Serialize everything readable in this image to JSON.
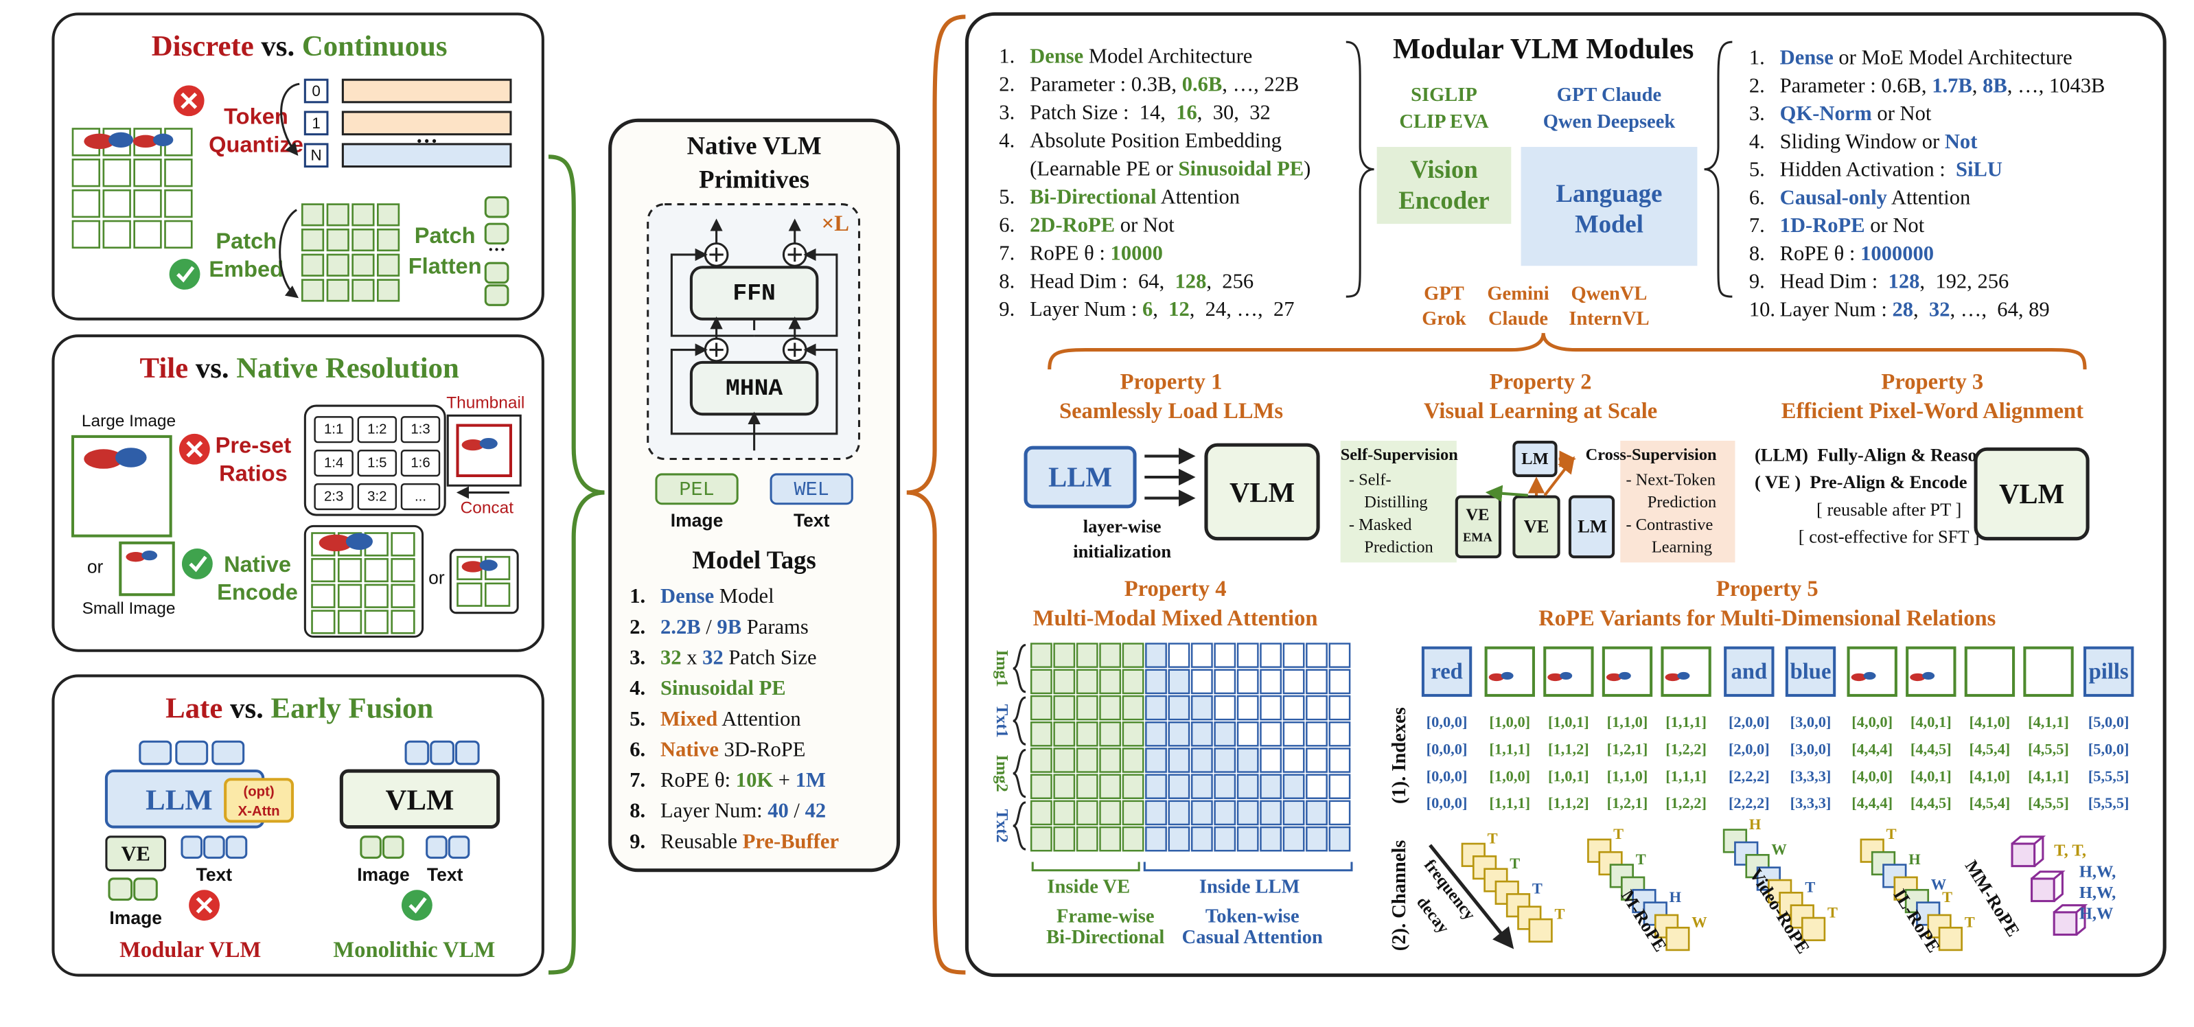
{
  "panels": {
    "discrete": {
      "title": [
        "Discrete",
        " vs. ",
        "Continuous"
      ],
      "token_quantize": [
        "Token",
        "Quantize"
      ],
      "indices": [
        "0",
        "1",
        "N"
      ],
      "ellipsis": "···",
      "patch_embed": [
        "Patch",
        "Embed"
      ],
      "patch_flatten": [
        "Patch",
        "Flatten"
      ],
      "ellipsis2": "···"
    },
    "tile": {
      "title": [
        "Tile",
        " vs. ",
        "Native Resolution"
      ],
      "large_image": "Large Image",
      "preset": [
        "Pre-set",
        "Ratios"
      ],
      "ratios": [
        "1:1",
        "1:2",
        "1:3",
        "1:4",
        "1:5",
        "1:6",
        "2:3",
        "3:2",
        "..."
      ],
      "thumbnail": "Thumbnail",
      "concat": "Concat",
      "or": "or",
      "small_image": "Small Image",
      "native_encode": [
        "Native",
        "Encode"
      ],
      "or2": "or"
    },
    "fusion": {
      "title": [
        "Late",
        " vs. ",
        "Early Fusion"
      ],
      "llm": "LLM",
      "x_attn": [
        "(opt)",
        "X-Attn"
      ],
      "ve": "VE",
      "text": "Text",
      "image": "Image",
      "modular": "Modular VLM",
      "vlm": "VLM",
      "image2": "Image",
      "text2": "Text",
      "monolithic": "Monolithic VLM"
    }
  },
  "primitives": {
    "title": [
      "Native VLM",
      "Primitives"
    ],
    "repeat": "×L",
    "ffn": "FFN",
    "mhna": "MHNA",
    "pel": "PEL",
    "wel": "WEL",
    "image": "Image",
    "text": "Text",
    "tags_title": "Model Tags",
    "tags": [
      [
        "1.",
        "Dense",
        " Model"
      ],
      [
        "2.",
        "2.2B",
        " / ",
        "9B",
        " Params"
      ],
      [
        "3.",
        "32",
        " x ",
        "32",
        " Patch Size"
      ],
      [
        "4.",
        "Sinusoidal PE"
      ],
      [
        "5.",
        "Mixed",
        " Attention"
      ],
      [
        "6.",
        "Native",
        " 3D-RoPE"
      ],
      [
        "7.",
        "RoPE θ: ",
        "10K",
        " + ",
        "1M"
      ],
      [
        "8.",
        "Layer Num: ",
        "40",
        " / ",
        "42"
      ],
      [
        "9.",
        "Reusable ",
        "Pre-Buffer"
      ]
    ]
  },
  "modules": {
    "title": "Modular VLM Modules",
    "vision_models": [
      "SIGLIP",
      "CLIP EVA"
    ],
    "vision_encoder": [
      "Vision",
      "Encoder"
    ],
    "language_models": [
      "GPT Claude",
      "Qwen Deepseek"
    ],
    "language_model": [
      "Language",
      "Model"
    ],
    "vlm_models": [
      [
        "GPT",
        "Grok"
      ],
      [
        "Gemini",
        "Claude"
      ],
      [
        "QwenVL",
        "InternVL"
      ]
    ],
    "vision_specs": [
      [
        "1.",
        "Dense",
        " Model Architecture"
      ],
      [
        "2.",
        "Parameter : 0.3B, ",
        "0.6B",
        ", …, 22B"
      ],
      [
        "3.",
        "Patch Size :  14,  ",
        "16",
        ",  30,  32"
      ],
      [
        "4.",
        "Absolute Position Embedding"
      ],
      [
        "(Learnable PE or ",
        "Sinusoidal PE",
        ")"
      ],
      [
        "5.",
        "Bi-Directional",
        " Attention"
      ],
      [
        "6.",
        "2D-RoPE",
        " or Not"
      ],
      [
        "7.",
        "RoPE θ : ",
        "10000"
      ],
      [
        "8.",
        "Head Dim :  64,  ",
        "128",
        ",  256"
      ],
      [
        "9.",
        "Layer Num : ",
        "6",
        ",  ",
        "12",
        ",  24, …,  27"
      ]
    ],
    "language_specs": [
      [
        "1.",
        "Dense",
        " or MoE Model Architecture"
      ],
      [
        "2.",
        "Parameter : 0.6B, ",
        "1.7B",
        ", ",
        "8B",
        ", …, 1043B"
      ],
      [
        "3.",
        "QK-Norm",
        " or Not"
      ],
      [
        "4.",
        "Sliding Window or ",
        "Not"
      ],
      [
        "5.",
        "Hidden Activation :  ",
        "SiLU"
      ],
      [
        "6.",
        "Causal-only",
        " Attention"
      ],
      [
        "7.",
        "1D-RoPE",
        " or Not"
      ],
      [
        "8.",
        "RoPE θ : ",
        "1000000"
      ],
      [
        "9.",
        "Head Dim :  ",
        "128",
        ",  192, 256"
      ],
      [
        "10.",
        "Layer Num : ",
        "28",
        ",  ",
        "32",
        ", …,  64, 89"
      ]
    ]
  },
  "properties": [
    {
      "title": [
        "Property 1",
        "Seamlessly Load LLMs"
      ],
      "llm": "LLM",
      "vlm": "VLM",
      "caption": [
        "layer-wise",
        "initialization"
      ]
    },
    {
      "title": [
        "Property 2",
        "Visual Learning at Scale"
      ],
      "self_title": "Self-Supervision",
      "self_items": [
        "- Self-",
        "Distilling",
        "- Masked",
        "Prediction"
      ],
      "cross_title": "Cross-Supervision",
      "cross_items": [
        "- Next-Token",
        "Prediction",
        "- Contrastive",
        "Learning"
      ],
      "lm_top": "LM",
      "ve_ema": [
        "VE",
        "EMA"
      ],
      "ve": "VE",
      "lm": "LM"
    },
    {
      "title": [
        "Property 3",
        "Efficient Pixel-Word Alignment"
      ],
      "lines": [
        "(LLM)  Fully-Align & Reason",
        "( VE )  Pre-Align & Encode",
        "[ reusable after PT ]",
        "[ cost-effective for SFT ]"
      ],
      "vlm": "VLM"
    },
    {
      "title": [
        "Property 4",
        "Multi-Modal Mixed Attention"
      ],
      "groups": [
        "Img1",
        "Txt1",
        "Img2",
        "Txt2"
      ],
      "inside_ve": "Inside VE",
      "inside_llm": "Inside LLM",
      "ve_caption": [
        "Frame-wise",
        "Bi-Directional"
      ],
      "llm_caption": [
        "Token-wise",
        "Casual Attention"
      ]
    },
    {
      "title": [
        "Property 5",
        "RoPE Variants for Multi-Dimensional Relations"
      ],
      "tokens": [
        "red",
        null,
        null,
        null,
        null,
        "and",
        "blue",
        null,
        null,
        null,
        null,
        "pills"
      ],
      "indexes_label": "(1). Indexes",
      "indexes": [
        [
          "[0,0,0]",
          "[1,0,0]",
          "[1,0,1]",
          "[1,1,0]",
          "[1,1,1]",
          "[2,0,0]",
          "[3,0,0]",
          "[4,0,0]",
          "[4,0,1]",
          "[4,1,0]",
          "[4,1,1]",
          "[5,0,0]"
        ],
        [
          "[0,0,0]",
          "[1,1,1]",
          "[1,1,2]",
          "[1,2,1]",
          "[1,2,2]",
          "[2,0,0]",
          "[3,0,0]",
          "[4,4,4]",
          "[4,4,5]",
          "[4,5,4]",
          "[4,5,5]",
          "[5,0,0]"
        ],
        [
          "[0,0,0]",
          "[1,0,0]",
          "[1,0,1]",
          "[1,1,0]",
          "[1,1,1]",
          "[2,2,2]",
          "[3,3,3]",
          "[4,0,0]",
          "[4,0,1]",
          "[4,1,0]",
          "[4,1,1]",
          "[5,5,5]"
        ],
        [
          "[0,0,0]",
          "[1,1,1]",
          "[1,1,2]",
          "[1,2,1]",
          "[1,2,2]",
          "[2,2,2]",
          "[3,3,3]",
          "[4,4,4]",
          "[4,4,5]",
          "[4,5,4]",
          "[4,5,5]",
          "[5,5,5]"
        ]
      ],
      "channels_label": "(2). Channels",
      "decay": [
        "frequency",
        "decay"
      ],
      "decay_letters": [
        "T",
        "T",
        "T",
        "T"
      ],
      "variants": [
        {
          "name": "M-RoPE",
          "letters": [
            "T",
            "T",
            "H",
            "W"
          ]
        },
        {
          "name": "Video-RoPE",
          "letters": [
            "H",
            "W",
            "T",
            "T"
          ]
        },
        {
          "name": "IL-RoPE",
          "letters": [
            "T",
            "H",
            "W",
            "T",
            "T"
          ]
        },
        {
          "name": "MM-RoPE",
          "letters": [
            "T, T,",
            "H,W,",
            "H,W,",
            "H,W"
          ]
        }
      ]
    }
  ]
}
